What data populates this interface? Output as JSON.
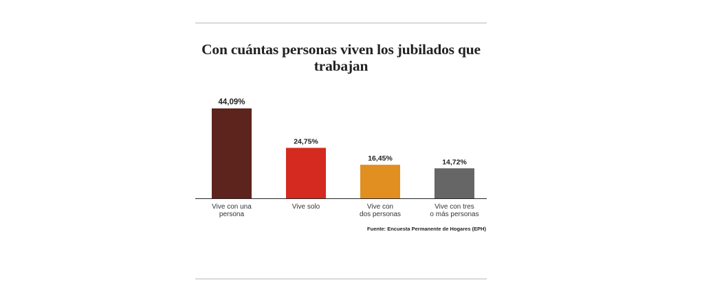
{
  "chart_data": {
    "type": "bar",
    "title": "Con cuántas personas viven los jubilados que trabajan",
    "categories": [
      [
        "Vive con una",
        "persona"
      ],
      [
        "Vive solo"
      ],
      [
        "Vive con",
        "dos personas"
      ],
      [
        "Vive con tres",
        "o más personas"
      ]
    ],
    "values": [
      44.09,
      24.75,
      16.45,
      14.72
    ],
    "value_labels": [
      "44,09%",
      "24,75%",
      "16,45%",
      "14,72%"
    ],
    "colors": [
      "#5c241c",
      "#d42a1f",
      "#e08f20",
      "#666666"
    ],
    "ylim": [
      0,
      44.09
    ],
    "xlabel": "",
    "ylabel": "",
    "grid": false,
    "source": "Fuente: Encuesta Permanente de Hogares (EPH)"
  }
}
